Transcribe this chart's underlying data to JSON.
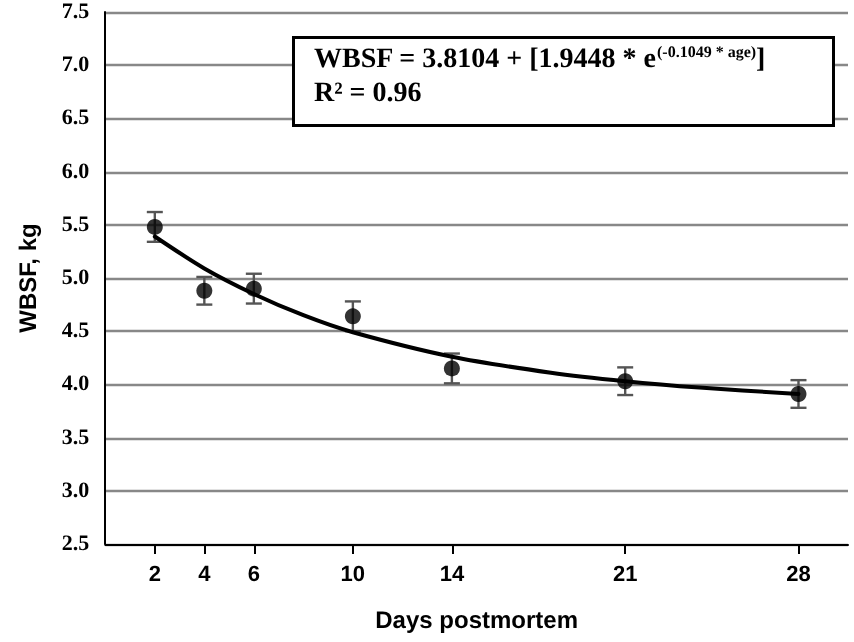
{
  "chart_data": {
    "type": "scatter",
    "xlabel": "Days postmortem",
    "ylabel": "WBSF, kg",
    "x": [
      2,
      4,
      6,
      10,
      14,
      21,
      28
    ],
    "series": [
      {
        "color": "#000000",
        "values": [
          5.48,
          4.88,
          4.9,
          4.64,
          4.15,
          4.03,
          3.91
        ],
        "errors": [
          0.14,
          0.13,
          0.14,
          0.14,
          0.14,
          0.13,
          0.13
        ],
        "marker": "circle"
      },
      {
        "type": "line",
        "color": "#000000",
        "x": [
          2,
          4,
          6,
          8,
          10,
          14,
          18,
          21,
          24,
          28
        ],
        "values": [
          5.39,
          5.09,
          4.85,
          4.65,
          4.49,
          4.26,
          4.11,
          4.03,
          3.97,
          3.91
        ],
        "marker": "none",
        "line_style": "solid"
      }
    ],
    "xlim": [
      0,
      30
    ],
    "xticks": [
      2,
      4,
      6,
      10,
      14,
      21,
      28
    ],
    "ylim": [
      2.5,
      7.5
    ],
    "yticks": [
      {
        "value": 2.5,
        "label": "2.5"
      },
      {
        "value": 3,
        "label": "3.0"
      },
      {
        "value": 3.5,
        "label": "3.5"
      },
      {
        "value": 4,
        "label": "4.0"
      },
      {
        "value": 4.5,
        "label": "4.5"
      },
      {
        "value": 5,
        "label": "5.0"
      },
      {
        "value": 5.5,
        "label": "5.5"
      },
      {
        "value": 6,
        "label": "6.0"
      },
      {
        "value": 6.5,
        "label": "6.5"
      },
      {
        "value": 7,
        "label": "7.0"
      },
      {
        "value": 7.5,
        "label": "7.5"
      }
    ],
    "grid": "y",
    "annotations": [
      "WBSF = 3.8104 + [1.9448 * e$^{(-0.1049 * age)}$]",
      "R² = 0.96"
    ]
  }
}
